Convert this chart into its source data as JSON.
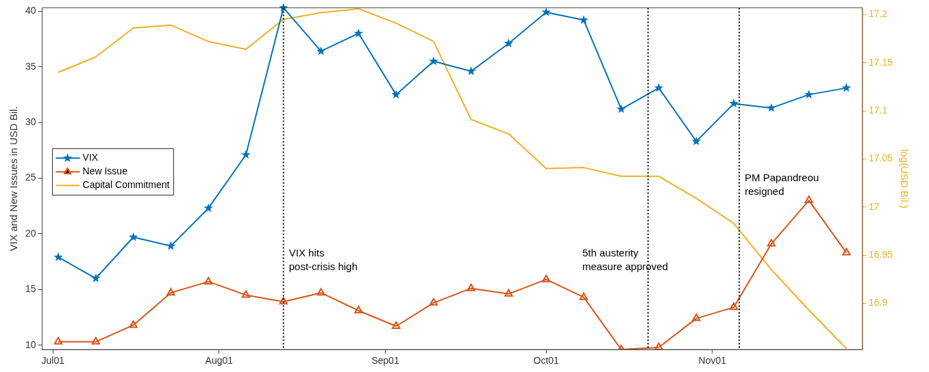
{
  "chart_data": {
    "type": "line",
    "ylabel": "VIX and New Issues in USD Bil.",
    "y2label": "log(USD Bil.)",
    "x": [
      "--07-02",
      "--07-09",
      "--07-16",
      "--07-23",
      "--07-30",
      "--08-06",
      "--08-13",
      "--08-20",
      "--08-27",
      "--09-03",
      "--09-10",
      "--09-17",
      "--09-24",
      "--10-01",
      "--10-08",
      "--10-15",
      "--10-22",
      "--10-29",
      "--11-05",
      "--11-12",
      "--11-19",
      "--11-26"
    ],
    "series": [
      {
        "name": "VIX",
        "color": "#0072bd",
        "marker": "star",
        "values": [
          17.9,
          16.0,
          19.7,
          18.9,
          22.3,
          27.1,
          40.3,
          36.4,
          38.0,
          32.5,
          35.5,
          34.6,
          37.1,
          39.9,
          39.2,
          31.2,
          33.1,
          28.3,
          31.7,
          31.3,
          32.5,
          33.1
        ]
      },
      {
        "name": "New Issue",
        "color": "#d95319",
        "marker": "triangle",
        "values": [
          10.3,
          10.3,
          11.8,
          14.7,
          15.7,
          14.5,
          13.9,
          14.7,
          13.1,
          11.7,
          13.8,
          15.1,
          14.6,
          15.9,
          14.3,
          9.6,
          9.8,
          12.4,
          13.4,
          19.1,
          23.0,
          18.3
        ]
      },
      {
        "name": "Capital Commitment",
        "color": "#edb120",
        "marker": "none",
        "axis": "y2",
        "values": [
          17.14,
          17.156,
          17.186,
          17.189,
          17.172,
          17.164,
          17.195,
          17.202,
          17.206,
          17.191,
          17.172,
          17.091,
          17.076,
          17.04,
          17.041,
          17.032,
          17.032,
          17.009,
          16.983,
          16.935,
          16.893,
          16.853
        ]
      }
    ],
    "xlim": [
      "--06-29",
      "--11-29"
    ],
    "xticks": [
      {
        "value": "--07-01",
        "label": "Jul01"
      },
      {
        "value": "--08-01",
        "label": "Aug01"
      },
      {
        "value": "--09-01",
        "label": "Sep01"
      },
      {
        "value": "--10-01",
        "label": "Oct01"
      },
      {
        "value": "--11-01",
        "label": "Nov01"
      }
    ],
    "ylim": [
      9.6,
      40.3
    ],
    "yticks": [
      10,
      15,
      20,
      25,
      30,
      35,
      40
    ],
    "y2lim": [
      16.852,
      17.207
    ],
    "y2ticks": [
      16.9,
      16.95,
      17,
      17.05,
      17.1,
      17.15,
      17.2
    ],
    "ref_lines": [
      {
        "axis": "x",
        "value": "--08-13",
        "label": "VIX hits\npost-crisis high",
        "color": "#000000",
        "line_style": "dotted"
      },
      {
        "axis": "x",
        "value": "--10-20",
        "label": "5th austerity\nmeasure approved",
        "color": "#000000",
        "line_style": "dotted"
      },
      {
        "axis": "x",
        "value": "--11-06",
        "label": "PM Papandreou\nresigned",
        "color": "#000000",
        "line_style": "dotted"
      }
    ],
    "grid": false,
    "legend": "left",
    "line_style": "solid"
  }
}
